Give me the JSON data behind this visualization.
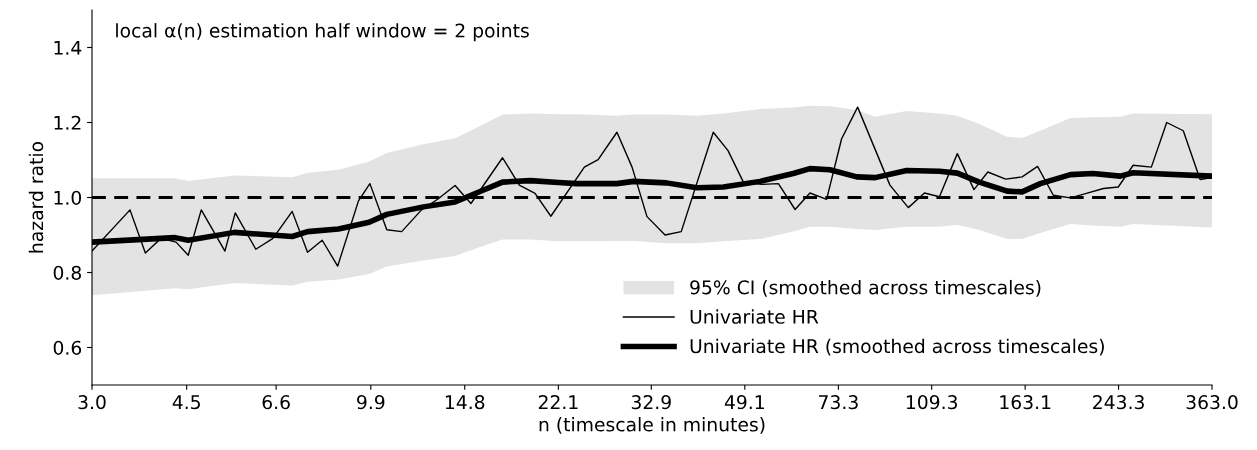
{
  "chart_data": {
    "type": "line",
    "title": "local α(n) estimation half window = 2 points",
    "xlabel": "n (timescale in minutes)",
    "ylabel": "hazard ratio",
    "log": "x",
    "xlim": [
      3.0,
      363.0
    ],
    "xticks": [
      {
        "value": 3.0,
        "label": "3.0"
      },
      {
        "value": 4.5,
        "label": "4.5"
      },
      {
        "value": 6.6,
        "label": "6.6"
      },
      {
        "value": 9.9,
        "label": "9.9"
      },
      {
        "value": 14.8,
        "label": "14.8"
      },
      {
        "value": 22.1,
        "label": "22.1"
      },
      {
        "value": 32.9,
        "label": "32.9"
      },
      {
        "value": 49.1,
        "label": "49.1"
      },
      {
        "value": 73.3,
        "label": "73.3"
      },
      {
        "value": 109.3,
        "label": "109.3"
      },
      {
        "value": 163.1,
        "label": "163.1"
      },
      {
        "value": 243.3,
        "label": "243.3"
      },
      {
        "value": 363.0,
        "label": "363.0"
      }
    ],
    "ylim": [
      0.5,
      1.5
    ],
    "yticks": [
      {
        "value": 0.6,
        "label": "0.6"
      },
      {
        "value": 0.8,
        "label": "0.8"
      },
      {
        "value": 1.0,
        "label": "1.0"
      },
      {
        "value": 1.2,
        "label": "1.2"
      },
      {
        "value": 1.4,
        "label": "1.4"
      }
    ],
    "grid": false,
    "legend": "bottom right",
    "ref_lines": [
      {
        "axis": "y",
        "value": 1.0,
        "color": "#000000",
        "line_style": "dashed"
      }
    ],
    "series": [
      {
        "name": "95% CI (smoothed across timescales)",
        "type": "area",
        "color": "#e3e3e3"
      },
      {
        "name": "Univariate HR",
        "color": "#000000",
        "x": [
          3.0,
          3.53,
          3.77,
          4.03,
          4.3,
          4.53,
          4.79,
          5.3,
          5.54,
          6.05,
          6.51,
          7.07,
          7.55,
          8.04,
          8.59,
          9.39,
          9.86,
          10.6,
          11.3,
          12.3,
          13.2,
          14.2,
          15.2,
          17.4,
          18.7,
          20.0,
          21.4,
          24.7,
          26.2,
          28.4,
          30.3,
          32.3,
          34.9,
          37.4,
          42.9,
          45.7,
          48.8,
          52.8,
          56.7,
          60.9,
          64.9,
          69.7,
          74.3,
          79.6,
          91.4,
          98.9,
          106,
          113,
          122,
          131,
          139,
          150,
          161,
          172,
          184,
          198,
          212,
          228,
          243,
          259,
          280,
          299,
          321,
          345,
          363
        ],
        "values": [
          0.857,
          0.967,
          0.852,
          0.891,
          0.881,
          0.846,
          0.967,
          0.857,
          0.959,
          0.862,
          0.891,
          0.963,
          0.854,
          0.886,
          0.817,
          0.991,
          1.037,
          0.914,
          0.909,
          0.967,
          0.996,
          1.032,
          0.984,
          1.106,
          1.033,
          1.011,
          0.95,
          1.081,
          1.101,
          1.174,
          1.081,
          0.949,
          0.9,
          0.909,
          1.174,
          1.125,
          1.041,
          1.035,
          1.037,
          0.968,
          1.012,
          0.995,
          1.156,
          1.241,
          1.033,
          0.973,
          1.012,
          1.002,
          1.117,
          1.021,
          1.068,
          1.049,
          1.055,
          1.083,
          1.006,
          0.999,
          1.011,
          1.024,
          1.028,
          1.086,
          1.081,
          1.2,
          1.178,
          1.048,
          1.053
        ]
      },
      {
        "name": "Univariate HR (smoothed across timescales)",
        "color": "#000000",
        "x": [
          3.0,
          4.28,
          4.53,
          5.52,
          7.07,
          7.55,
          8.62,
          9.83,
          10.6,
          12.4,
          14.2,
          15.8,
          17.4,
          19.6,
          22.1,
          23.9,
          28.4,
          30.5,
          35.1,
          40.0,
          44.8,
          52.4,
          60.4,
          64.9,
          70.7,
          79.3,
          85.8,
          98.2,
          113,
          122,
          134,
          151,
          161,
          174,
          198,
          218,
          245,
          259,
          363
        ],
        "values": [
          0.881,
          0.893,
          0.886,
          0.907,
          0.896,
          0.909,
          0.916,
          0.934,
          0.955,
          0.975,
          0.988,
          1.016,
          1.041,
          1.045,
          1.04,
          1.037,
          1.037,
          1.043,
          1.039,
          1.026,
          1.028,
          1.043,
          1.064,
          1.077,
          1.074,
          1.055,
          1.053,
          1.072,
          1.07,
          1.065,
          1.041,
          1.017,
          1.015,
          1.037,
          1.061,
          1.064,
          1.057,
          1.066,
          1.057
        ],
        "lower": [
          0.739,
          0.758,
          0.755,
          0.772,
          0.765,
          0.775,
          0.781,
          0.796,
          0.816,
          0.832,
          0.844,
          0.868,
          0.888,
          0.888,
          0.883,
          0.883,
          0.884,
          0.884,
          0.878,
          0.878,
          0.883,
          0.889,
          0.909,
          0.922,
          0.922,
          0.916,
          0.913,
          0.922,
          0.922,
          0.927,
          0.913,
          0.889,
          0.889,
          0.905,
          0.929,
          0.925,
          0.922,
          0.929,
          0.92
        ],
        "upper": [
          1.051,
          1.051,
          1.044,
          1.059,
          1.054,
          1.066,
          1.074,
          1.096,
          1.119,
          1.142,
          1.158,
          1.191,
          1.221,
          1.224,
          1.222,
          1.222,
          1.218,
          1.221,
          1.221,
          1.218,
          1.224,
          1.236,
          1.24,
          1.245,
          1.243,
          1.233,
          1.215,
          1.231,
          1.224,
          1.218,
          1.196,
          1.162,
          1.159,
          1.178,
          1.212,
          1.214,
          1.215,
          1.224,
          1.222
        ]
      }
    ]
  }
}
